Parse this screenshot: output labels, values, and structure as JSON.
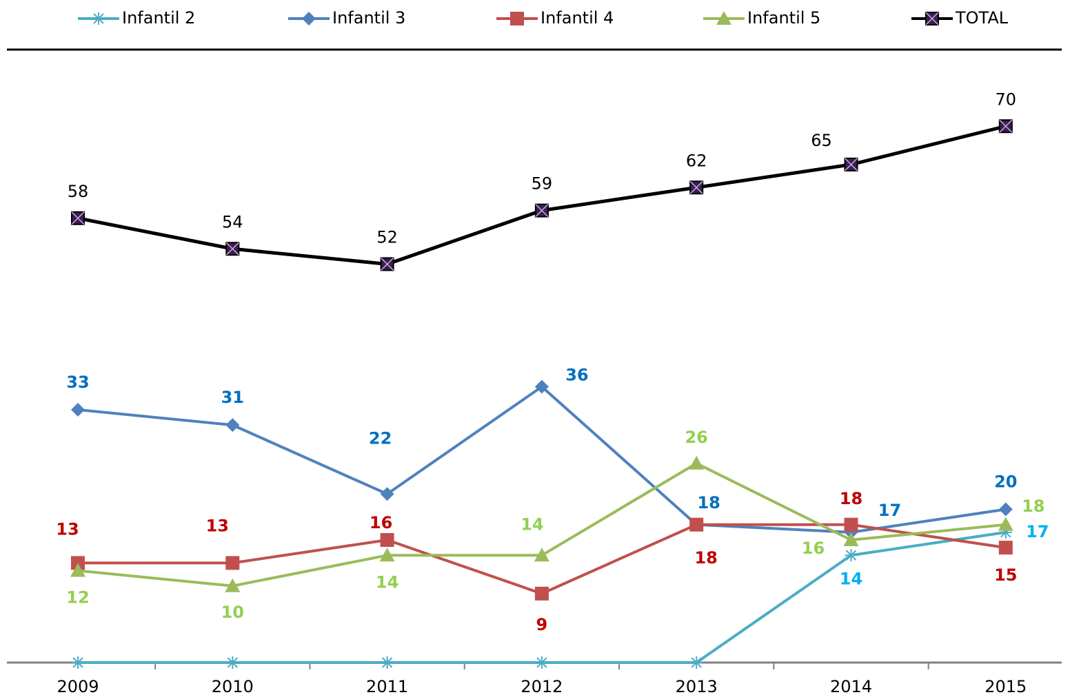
{
  "chart_data": {
    "type": "line",
    "categories": [
      "2009",
      "2010",
      "2011",
      "2012",
      "2013",
      "2014",
      "2015"
    ],
    "ylim": [
      0,
      80
    ],
    "legend": "top",
    "series": [
      {
        "name": "Infantil 2",
        "color": "#4bacc6",
        "label_color": "#00b0f0",
        "marker": "star",
        "values": [
          0,
          0,
          0,
          0,
          0,
          14,
          17
        ],
        "value_labels": [
          null,
          null,
          null,
          null,
          null,
          "14",
          "17"
        ]
      },
      {
        "name": "Infantil 3",
        "color": "#4f81bd",
        "label_color": "#0070c0",
        "marker": "diamond",
        "values": [
          33,
          31,
          22,
          36,
          18,
          17,
          20
        ]
      },
      {
        "name": "Infantil 4",
        "color": "#c0504d",
        "label_color": "#c00000",
        "marker": "square",
        "values": [
          13,
          13,
          16,
          9,
          18,
          18,
          15
        ]
      },
      {
        "name": "Infantil 5",
        "color": "#9bbb59",
        "label_color": "#92d050",
        "marker": "triangle",
        "values": [
          12,
          10,
          14,
          14,
          26,
          16,
          18
        ]
      },
      {
        "name": "TOTAL",
        "color": "#000000",
        "label_color": "#000000",
        "marker": "xsquare",
        "values": [
          58,
          54,
          52,
          59,
          62,
          65,
          70
        ]
      }
    ]
  }
}
